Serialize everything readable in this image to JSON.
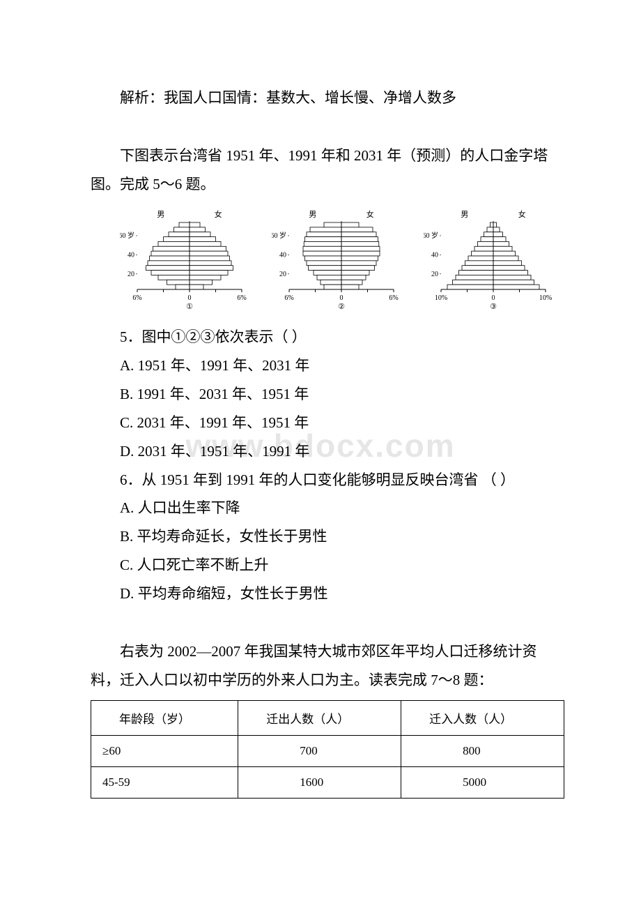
{
  "explain_line": "解析：我国人口国情：基数大、增长慢、净增人数多",
  "intro56": "下图表示台湾省 1951 年、1991 年和 2031 年（预测）的人口金字塔图。完成 5～6 题。",
  "pyramids": [
    {
      "label_male": "男",
      "label_female": "女",
      "y_ticks": [
        "60 岁",
        "40",
        "20"
      ],
      "x_left": "6%",
      "x_mid": "0",
      "x_right": "6%",
      "footer": "①",
      "shape": "diamond",
      "bars": [
        1.2,
        1.8,
        2.4,
        3.0,
        3.6,
        4.2,
        4.4,
        4.6,
        4.8,
        5.0,
        4.4,
        3.6,
        2.6,
        1.6
      ]
    },
    {
      "label_male": "男",
      "label_female": "女",
      "y_ticks": [
        "60 岁",
        "40",
        "20"
      ],
      "x_left": "6%",
      "x_mid": "0",
      "x_right": "6%",
      "footer": "②",
      "shape": "barrel",
      "bars": [
        2.0,
        3.6,
        4.0,
        4.2,
        4.3,
        4.4,
        4.4,
        4.2,
        4.0,
        3.8,
        3.2,
        2.8,
        2.4,
        2.0
      ]
    },
    {
      "label_male": "男",
      "label_female": "女",
      "y_ticks": [
        "60 岁",
        "40",
        "20"
      ],
      "x_left": "10%",
      "x_mid": "0",
      "x_right": "10%",
      "footer": "③",
      "shape": "triangle",
      "bars": [
        0.6,
        1.2,
        1.8,
        2.4,
        3.0,
        3.6,
        4.2,
        4.8,
        5.4,
        6.0,
        6.6,
        7.2,
        7.8,
        8.8
      ]
    }
  ],
  "q5": {
    "stem": "5．图中①②③依次表示（ ）",
    "a": " A. 1951 年、1991 年、2031 年",
    "b": "B. 1991 年、2031 年、1951 年",
    "c": " C. 2031 年、1991 年、1951 年",
    "d": " D. 2031 年、1951 年、1991 年"
  },
  "q6": {
    "stem": "6．从 1951 年到 1991 年的人口变化能够明显反映台湾省 （ ）",
    "a": " A. 人口出生率下降",
    "b": "B. 平均寿命延长，女性长于男性",
    "c": "C. 人口死亡率不断上升",
    "d": "D. 平均寿命缩短，女性长于男性"
  },
  "intro78": "右表为 2002—2007 年我国某特大城市郊区年平均人口迁移统计资料，迁入人口以初中学历的外来人口为主。读表完成 7～8 题：",
  "table": {
    "headers": [
      "年龄段（岁）",
      "迁出人数（人）",
      "迁入人数（人）"
    ],
    "rows": [
      [
        "≥60",
        "700",
        "800"
      ],
      [
        "45-59",
        "1600",
        "5000"
      ]
    ]
  },
  "watermark": "www.bdocx.com",
  "colors": {
    "text": "#000000",
    "bg": "#ffffff",
    "watermark": "#e6e6e6",
    "bar_fill": "#ffffff",
    "bar_stroke": "#000000"
  }
}
